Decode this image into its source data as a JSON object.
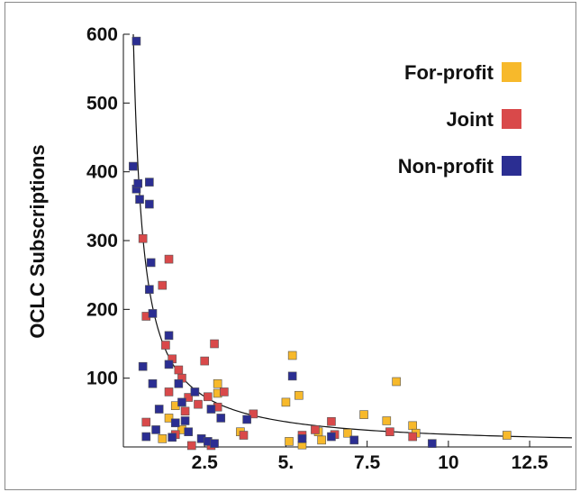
{
  "chart_data": {
    "type": "scatter",
    "title": "",
    "xlabel": "",
    "ylabel": "OCLC Subscriptions",
    "xlim": [
      0,
      13.8
    ],
    "ylim": [
      0,
      600
    ],
    "x_ticks": [
      {
        "value": 2.5,
        "label": "2.5"
      },
      {
        "value": 5,
        "label": "5."
      },
      {
        "value": 7.5,
        "label": "7.5"
      },
      {
        "value": 10,
        "label": "10"
      },
      {
        "value": 12.5,
        "label": "12.5"
      }
    ],
    "y_ticks": [
      {
        "value": 100,
        "label": "100"
      },
      {
        "value": 200,
        "label": "200"
      },
      {
        "value": 300,
        "label": "300"
      },
      {
        "value": 400,
        "label": "400"
      },
      {
        "value": 500,
        "label": "500"
      },
      {
        "value": 600,
        "label": "600"
      }
    ],
    "grid": false,
    "legend_position": "top-right",
    "fit_curve": {
      "formula": "y = k / x",
      "k": 183
    },
    "series": [
      {
        "name": "For-profit",
        "color": "#F7B92B",
        "points": [
          [
            1.4,
            42
          ],
          [
            1.6,
            60
          ],
          [
            1.2,
            12
          ],
          [
            1.8,
            25
          ],
          [
            2.9,
            78
          ],
          [
            2.9,
            92
          ],
          [
            3.6,
            22
          ],
          [
            5.0,
            65
          ],
          [
            5.2,
            133
          ],
          [
            5.4,
            75
          ],
          [
            5.1,
            8
          ],
          [
            5.5,
            3
          ],
          [
            6.0,
            22
          ],
          [
            6.1,
            10
          ],
          [
            6.9,
            20
          ],
          [
            7.4,
            47
          ],
          [
            8.1,
            38
          ],
          [
            8.4,
            95
          ],
          [
            8.9,
            31
          ],
          [
            9.0,
            20
          ],
          [
            11.8,
            17
          ]
        ]
      },
      {
        "name": "Joint",
        "color": "#D9494A",
        "points": [
          [
            0.6,
            303
          ],
          [
            0.7,
            190
          ],
          [
            0.7,
            36
          ],
          [
            1.2,
            235
          ],
          [
            1.3,
            148
          ],
          [
            1.4,
            273
          ],
          [
            1.4,
            80
          ],
          [
            1.5,
            128
          ],
          [
            1.6,
            18
          ],
          [
            1.7,
            112
          ],
          [
            1.8,
            100
          ],
          [
            1.9,
            52
          ],
          [
            2.0,
            72
          ],
          [
            2.1,
            2
          ],
          [
            2.3,
            62
          ],
          [
            2.5,
            125
          ],
          [
            2.6,
            73
          ],
          [
            2.7,
            2
          ],
          [
            2.8,
            150
          ],
          [
            2.9,
            58
          ],
          [
            3.1,
            80
          ],
          [
            3.7,
            17
          ],
          [
            4.0,
            48
          ],
          [
            5.5,
            17
          ],
          [
            5.9,
            25
          ],
          [
            6.4,
            37
          ],
          [
            6.5,
            18
          ],
          [
            8.2,
            22
          ],
          [
            8.9,
            15
          ]
        ]
      },
      {
        "name": "Non-profit",
        "color": "#2B2E92",
        "points": [
          [
            0.3,
            408
          ],
          [
            0.4,
            590
          ],
          [
            0.4,
            375
          ],
          [
            0.45,
            383
          ],
          [
            0.5,
            360
          ],
          [
            0.6,
            117
          ],
          [
            0.7,
            15
          ],
          [
            0.8,
            385
          ],
          [
            0.8,
            353
          ],
          [
            0.8,
            229
          ],
          [
            0.85,
            268
          ],
          [
            0.9,
            194
          ],
          [
            0.9,
            92
          ],
          [
            1.0,
            25
          ],
          [
            1.1,
            55
          ],
          [
            1.4,
            162
          ],
          [
            1.4,
            120
          ],
          [
            1.5,
            14
          ],
          [
            1.6,
            35
          ],
          [
            1.7,
            92
          ],
          [
            1.8,
            65
          ],
          [
            1.9,
            38
          ],
          [
            2.0,
            22
          ],
          [
            2.2,
            80
          ],
          [
            2.4,
            12
          ],
          [
            2.6,
            8
          ],
          [
            2.7,
            55
          ],
          [
            2.8,
            5
          ],
          [
            3.0,
            42
          ],
          [
            3.8,
            40
          ],
          [
            5.2,
            103
          ],
          [
            5.5,
            12
          ],
          [
            6.4,
            15
          ],
          [
            7.1,
            10
          ],
          [
            9.5,
            5
          ]
        ]
      }
    ]
  }
}
